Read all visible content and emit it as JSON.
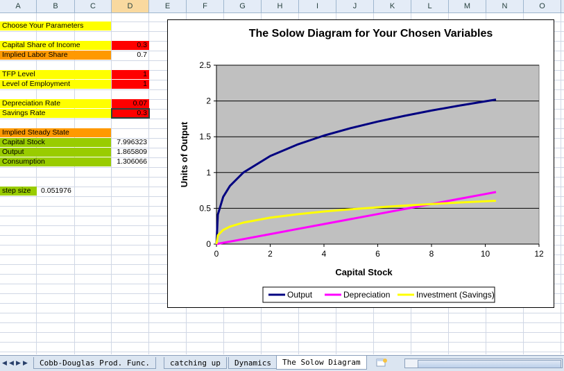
{
  "columns": [
    "A",
    "B",
    "C",
    "D",
    "E",
    "F",
    "G",
    "H",
    "I",
    "J",
    "K",
    "L",
    "M",
    "N",
    "O"
  ],
  "selected_column": "D",
  "cells": {
    "choose_params": "Choose Your Parameters",
    "capital_share_label": "Capital Share of Income",
    "capital_share_value": "0.3",
    "labor_share_label": "Implied Labor Share",
    "labor_share_value": "0.7",
    "tfp_label": "TFP Level",
    "tfp_value": "1",
    "employment_label": "Level of Employment",
    "employment_value": "1",
    "depreciation_label": "Depreciation Rate",
    "depreciation_value": "0.07",
    "savings_label": "Savings Rate",
    "savings_value": "0.3",
    "steady_state_label": "Implied Steady State",
    "capital_stock_label": "Capital Stock",
    "capital_stock_value": "7.996323",
    "output_label": "Output",
    "output_value": "1.865809",
    "consumption_label": "Consumption",
    "consumption_value": "1.306066",
    "step_size_label": "step size",
    "step_size_value": "0.051976"
  },
  "colors": {
    "output": "#000080",
    "depreciation": "#ff00ff",
    "investment": "#ffff00",
    "plot_area": "#c0c0c0"
  },
  "chart_data": {
    "type": "line",
    "title": "The Solow Diagram for Your Chosen Variables",
    "xlabel": "Capital Stock",
    "ylabel": "Units of Output",
    "xlim": [
      0,
      12
    ],
    "ylim": [
      0,
      2.5
    ],
    "xticks": [
      "0",
      "2",
      "4",
      "6",
      "8",
      "10",
      "12"
    ],
    "yticks": [
      "0",
      "0.5",
      "1",
      "1.5",
      "2",
      "2.5"
    ],
    "grid": true,
    "legend_position": "bottom",
    "x": [
      0,
      0.052,
      0.25,
      0.5,
      1,
      2,
      3,
      4,
      5,
      6,
      7,
      8,
      9,
      10,
      10.4
    ],
    "series": [
      {
        "name": "Output",
        "values": [
          0,
          0.411,
          0.66,
          0.812,
          1.0,
          1.231,
          1.39,
          1.516,
          1.621,
          1.712,
          1.793,
          1.866,
          1.933,
          1.995,
          2.019
        ]
      },
      {
        "name": "Depreciation",
        "values": [
          0,
          0.004,
          0.018,
          0.035,
          0.07,
          0.14,
          0.21,
          0.28,
          0.35,
          0.42,
          0.49,
          0.56,
          0.63,
          0.7,
          0.728
        ]
      },
      {
        "name": "Investment (Savings)",
        "values": [
          0,
          0.123,
          0.198,
          0.244,
          0.3,
          0.369,
          0.417,
          0.455,
          0.486,
          0.514,
          0.538,
          0.56,
          0.58,
          0.599,
          0.606
        ]
      }
    ]
  },
  "sheet_tabs": [
    "Cobb-Douglas Prod. Func.",
    "catching up",
    "Dynamics",
    "The Solow Diagram"
  ],
  "active_tab": "The Solow Diagram"
}
